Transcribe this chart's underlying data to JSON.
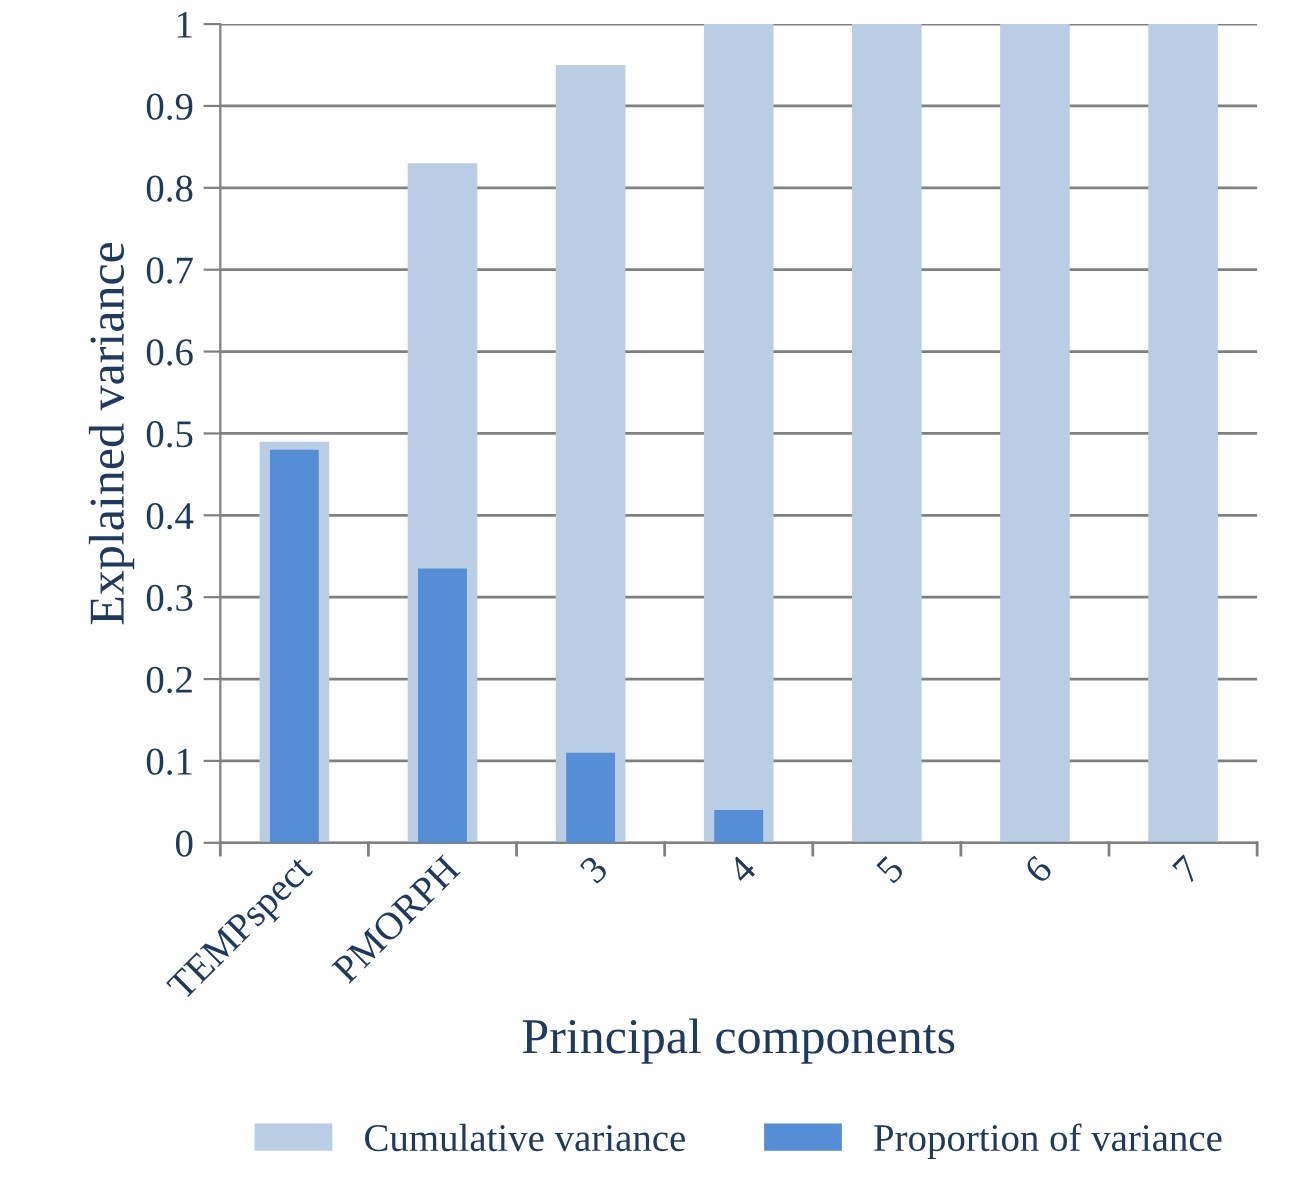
{
  "chart_data": {
    "type": "bar",
    "xlabel": "Principal components",
    "ylabel": "Explained variance",
    "categories": [
      "TEMPspect",
      "PMORPH",
      "3",
      "4",
      "5",
      "6",
      "7"
    ],
    "series": [
      {
        "name": "Cumulative variance",
        "color": "#b9cde5",
        "values": [
          0.49,
          0.83,
          0.95,
          1.0,
          1.0,
          1.0,
          1.0
        ]
      },
      {
        "name": "Proportion of variance",
        "color": "#558ed5",
        "values": [
          0.48,
          0.335,
          0.11,
          0.04,
          0,
          0,
          0
        ]
      }
    ],
    "ylim": [
      0,
      1
    ],
    "yticks": [
      0,
      0.1,
      0.2,
      0.3,
      0.4,
      0.5,
      0.6,
      0.7,
      0.8,
      0.9,
      1
    ],
    "grid": "y",
    "legend": "bottom"
  }
}
